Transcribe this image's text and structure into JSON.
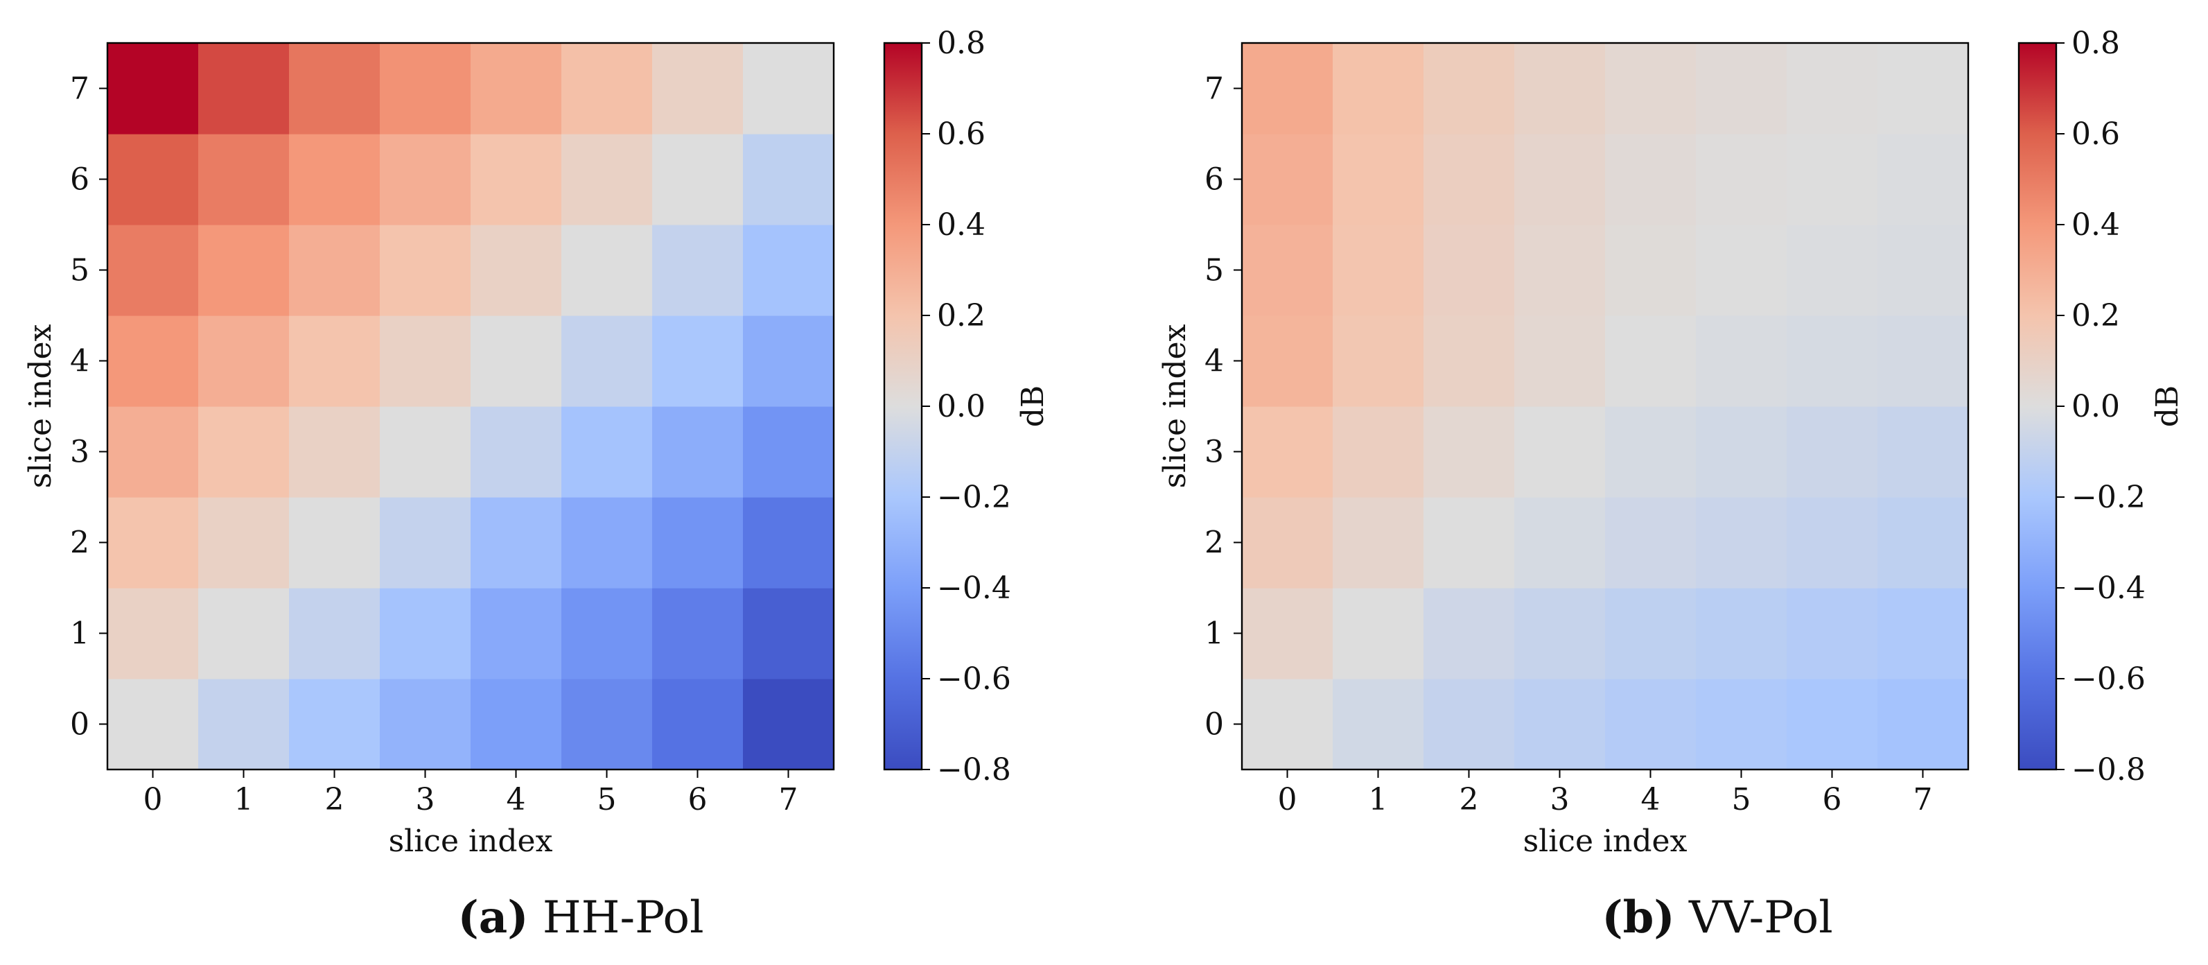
{
  "chart_data": [
    {
      "type": "heatmap",
      "panel": "a",
      "caption_letter": "(a)",
      "caption_text": "HH-Pol",
      "xlabel": "slice index",
      "ylabel": "slice index",
      "x_categories": [
        "0",
        "1",
        "2",
        "3",
        "4",
        "5",
        "6",
        "7"
      ],
      "y_categories": [
        "0",
        "1",
        "2",
        "3",
        "4",
        "5",
        "6",
        "7"
      ],
      "colorbar": {
        "label": "dB",
        "colormap": "coolwarm",
        "vmin": -0.8,
        "vmax": 0.8,
        "ticks": [
          0.8,
          0.6,
          0.4,
          0.2,
          0.0,
          -0.2,
          -0.4,
          -0.6,
          -0.8
        ],
        "tick_labels": [
          "0.8",
          "0.6",
          "0.4",
          "0.2",
          "0.0",
          "−0.2",
          "−0.4",
          "−0.6",
          "−0.8"
        ]
      },
      "values": [
        [
          0.0,
          -0.1,
          -0.2,
          -0.3,
          -0.4,
          -0.5,
          -0.6,
          -0.8
        ],
        [
          0.1,
          0.0,
          -0.1,
          -0.22,
          -0.35,
          -0.45,
          -0.55,
          -0.7
        ],
        [
          0.2,
          0.1,
          0.0,
          -0.1,
          -0.25,
          -0.35,
          -0.45,
          -0.58
        ],
        [
          0.3,
          0.2,
          0.1,
          0.0,
          -0.1,
          -0.22,
          -0.33,
          -0.45
        ],
        [
          0.4,
          0.3,
          0.2,
          0.1,
          0.0,
          -0.1,
          -0.2,
          -0.33
        ],
        [
          0.5,
          0.4,
          0.3,
          0.2,
          0.1,
          0.0,
          -0.1,
          -0.22
        ],
        [
          0.6,
          0.5,
          0.4,
          0.3,
          0.2,
          0.1,
          0.0,
          -0.12
        ],
        [
          0.8,
          0.65,
          0.52,
          0.42,
          0.32,
          0.22,
          0.1,
          0.0
        ]
      ]
    },
    {
      "type": "heatmap",
      "panel": "b",
      "caption_letter": "(b)",
      "caption_text": "VV-Pol",
      "xlabel": "slice index",
      "ylabel": "slice index",
      "x_categories": [
        "0",
        "1",
        "2",
        "3",
        "4",
        "5",
        "6",
        "7"
      ],
      "y_categories": [
        "0",
        "1",
        "2",
        "3",
        "4",
        "5",
        "6",
        "7"
      ],
      "colorbar": {
        "label": "dB",
        "colormap": "coolwarm",
        "vmin": -0.8,
        "vmax": 0.8,
        "ticks": [
          0.8,
          0.6,
          0.4,
          0.2,
          0.0,
          -0.2,
          -0.4,
          -0.6,
          -0.8
        ],
        "tick_labels": [
          "0.8",
          "0.6",
          "0.4",
          "0.2",
          "0.0",
          "−0.2",
          "−0.4",
          "−0.6",
          "−0.8"
        ]
      },
      "values": [
        [
          0.0,
          -0.05,
          -0.1,
          -0.13,
          -0.16,
          -0.18,
          -0.2,
          -0.22
        ],
        [
          0.08,
          0.0,
          -0.06,
          -0.09,
          -0.12,
          -0.14,
          -0.16,
          -0.18
        ],
        [
          0.15,
          0.07,
          0.0,
          -0.03,
          -0.06,
          -0.08,
          -0.1,
          -0.12
        ],
        [
          0.2,
          0.12,
          0.05,
          0.0,
          -0.03,
          -0.05,
          -0.07,
          -0.09
        ],
        [
          0.27,
          0.18,
          0.1,
          0.05,
          0.0,
          -0.02,
          -0.03,
          -0.04
        ],
        [
          0.28,
          0.19,
          0.11,
          0.06,
          0.02,
          0.0,
          -0.01,
          -0.02
        ],
        [
          0.3,
          0.2,
          0.12,
          0.07,
          0.03,
          0.01,
          0.0,
          -0.01
        ],
        [
          0.32,
          0.21,
          0.14,
          0.09,
          0.05,
          0.03,
          0.01,
          0.0
        ]
      ]
    }
  ]
}
